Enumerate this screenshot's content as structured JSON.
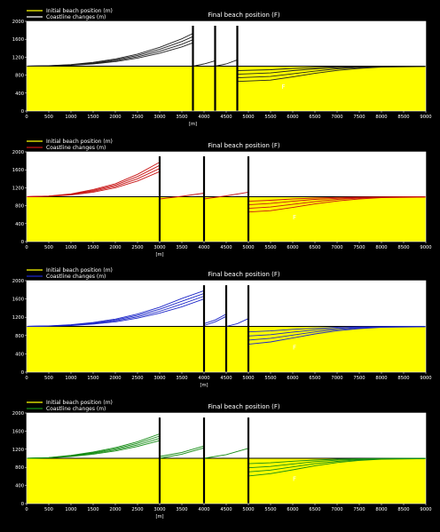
{
  "chart_data": [
    {
      "type": "line",
      "title": "Final beach position (F)",
      "legend": [
        "Initial beach position (m)",
        "Coastline changes (m)"
      ],
      "legend_placement": "top-left",
      "xlabel": "[m]",
      "xlim": [
        0,
        9000
      ],
      "ylim": [
        0,
        2000
      ],
      "xticks": [
        0,
        500,
        1000,
        1500,
        2000,
        2500,
        3000,
        3500,
        4000,
        4500,
        5000,
        5500,
        6000,
        6500,
        7000,
        7500,
        8000,
        8500,
        9000
      ],
      "yticks": [
        0,
        400,
        800,
        1200,
        1600,
        2000
      ],
      "initial_beach_position": 1000,
      "groynes": [
        3750,
        4250,
        4750
      ],
      "series_color": "#202020",
      "f_labels": [
        "F",
        "F",
        "F",
        "F"
      ],
      "series": [
        {
          "x": [
            0,
            500,
            1000,
            1500,
            2000,
            2500,
            3000,
            3500,
            3750
          ],
          "y": [
            1000,
            1005,
            1020,
            1050,
            1100,
            1180,
            1290,
            1430,
            1520
          ]
        },
        {
          "x": [
            0,
            500,
            1000,
            1500,
            2000,
            2500,
            3000,
            3500,
            3750
          ],
          "y": [
            1000,
            1006,
            1025,
            1060,
            1120,
            1210,
            1330,
            1490,
            1590
          ]
        },
        {
          "x": [
            0,
            500,
            1000,
            1500,
            2000,
            2500,
            3000,
            3500,
            3750
          ],
          "y": [
            1000,
            1008,
            1030,
            1072,
            1140,
            1240,
            1375,
            1550,
            1660
          ]
        },
        {
          "x": [
            0,
            500,
            1000,
            1500,
            2000,
            2500,
            3000,
            3500,
            3750
          ],
          "y": [
            1000,
            1010,
            1036,
            1085,
            1160,
            1270,
            1420,
            1610,
            1730
          ]
        },
        {
          "x": [
            3750,
            4000,
            4250
          ],
          "y": [
            1000,
            1050,
            1120
          ]
        },
        {
          "x": [
            4250,
            4500,
            4750
          ],
          "y": [
            1000,
            1050,
            1140
          ]
        },
        {
          "x": [
            4750,
            5500,
            6000,
            6500,
            7000,
            7500,
            8000,
            9000
          ],
          "y": [
            900,
            920,
            950,
            970,
            985,
            993,
            997,
            1000
          ]
        },
        {
          "x": [
            4750,
            5500,
            6000,
            6500,
            7000,
            7500,
            8000,
            9000
          ],
          "y": [
            820,
            850,
            900,
            940,
            965,
            983,
            993,
            998
          ]
        },
        {
          "x": [
            4750,
            5500,
            6000,
            6500,
            7000,
            7500,
            8000,
            9000
          ],
          "y": [
            740,
            770,
            830,
            890,
            940,
            970,
            988,
            996
          ]
        },
        {
          "x": [
            4750,
            5500,
            6000,
            6500,
            7000,
            7500,
            8000,
            9000
          ],
          "y": [
            660,
            690,
            760,
            840,
            905,
            950,
            978,
            992
          ]
        }
      ]
    },
    {
      "type": "line",
      "title": "Final beach position (F)",
      "legend": [
        "Initial beach position (m)",
        "Coastline changes (m)"
      ],
      "legend_placement": "top-left",
      "xlabel": "[m]",
      "xlim": [
        0,
        9000
      ],
      "ylim": [
        0,
        2000
      ],
      "xticks": [
        0,
        500,
        1000,
        1500,
        2000,
        2500,
        3000,
        3500,
        4000,
        4500,
        5000,
        5500,
        6000,
        6500,
        7000,
        7500,
        8000,
        8500,
        9000
      ],
      "yticks": [
        0,
        400,
        800,
        1200,
        1600,
        2000
      ],
      "initial_beach_position": 1000,
      "groynes": [
        3000,
        4000,
        5000
      ],
      "series_color": "#c81414",
      "f_labels": [
        "F",
        "F"
      ],
      "series": [
        {
          "x": [
            0,
            500,
            1000,
            1500,
            2000,
            2500,
            3000
          ],
          "y": [
            1000,
            1010,
            1040,
            1100,
            1200,
            1350,
            1560
          ]
        },
        {
          "x": [
            0,
            500,
            1000,
            1500,
            2000,
            2500,
            3000
          ],
          "y": [
            1000,
            1012,
            1048,
            1120,
            1230,
            1400,
            1630
          ]
        },
        {
          "x": [
            0,
            500,
            1000,
            1500,
            2000,
            2500,
            3000
          ],
          "y": [
            1000,
            1014,
            1056,
            1140,
            1260,
            1450,
            1700
          ]
        },
        {
          "x": [
            0,
            500,
            1000,
            1500,
            2000,
            2500,
            3000
          ],
          "y": [
            1000,
            1016,
            1064,
            1160,
            1290,
            1500,
            1770
          ]
        },
        {
          "x": [
            3000,
            3500,
            4000
          ],
          "y": [
            950,
            1010,
            1080
          ]
        },
        {
          "x": [
            4000,
            4500,
            5000
          ],
          "y": [
            950,
            1020,
            1100
          ]
        },
        {
          "x": [
            5000,
            5500,
            6000,
            6500,
            7000,
            7500,
            8000,
            9000
          ],
          "y": [
            900,
            920,
            950,
            970,
            985,
            993,
            997,
            1000
          ]
        },
        {
          "x": [
            5000,
            5500,
            6000,
            6500,
            7000,
            7500,
            8000,
            9000
          ],
          "y": [
            820,
            850,
            900,
            940,
            965,
            983,
            993,
            998
          ]
        },
        {
          "x": [
            5000,
            5500,
            6000,
            6500,
            7000,
            7500,
            8000,
            9000
          ],
          "y": [
            740,
            770,
            830,
            890,
            940,
            970,
            988,
            996
          ]
        },
        {
          "x": [
            5000,
            5500,
            6000,
            6500,
            7000,
            7500,
            8000,
            9000
          ],
          "y": [
            660,
            690,
            760,
            840,
            905,
            950,
            978,
            992
          ]
        }
      ]
    },
    {
      "type": "line",
      "title": "Final beach position (F)",
      "legend": [
        "Initial beach position (m)",
        "Coastline changes (m)"
      ],
      "legend_placement": "top-left",
      "xlabel": "[m]",
      "xlim": [
        0,
        9000
      ],
      "ylim": [
        0,
        2000
      ],
      "xticks": [
        0,
        500,
        1000,
        1500,
        2000,
        2500,
        3000,
        3500,
        4000,
        4500,
        5000,
        5500,
        6000,
        6500,
        7000,
        7500,
        8000,
        8500,
        9000
      ],
      "yticks": [
        0,
        400,
        800,
        1200,
        1600,
        2000
      ],
      "initial_beach_position": 1000,
      "groynes": [
        4000,
        4500,
        5000
      ],
      "series_color": "#1e28c8",
      "f_labels": [
        "F",
        "F"
      ],
      "series": [
        {
          "x": [
            0,
            500,
            1000,
            1500,
            2000,
            2500,
            3000,
            3500,
            4000
          ],
          "y": [
            1000,
            1005,
            1020,
            1050,
            1100,
            1180,
            1290,
            1430,
            1600
          ]
        },
        {
          "x": [
            0,
            500,
            1000,
            1500,
            2000,
            2500,
            3000,
            3500,
            4000
          ],
          "y": [
            1000,
            1006,
            1025,
            1060,
            1120,
            1210,
            1330,
            1490,
            1660
          ]
        },
        {
          "x": [
            0,
            500,
            1000,
            1500,
            2000,
            2500,
            3000,
            3500,
            4000
          ],
          "y": [
            1000,
            1008,
            1030,
            1072,
            1140,
            1240,
            1375,
            1550,
            1720
          ]
        },
        {
          "x": [
            0,
            500,
            1000,
            1500,
            2000,
            2500,
            3000,
            3500,
            4000
          ],
          "y": [
            1000,
            1010,
            1036,
            1085,
            1160,
            1270,
            1420,
            1610,
            1780
          ]
        },
        {
          "x": [
            4000,
            4250,
            4500
          ],
          "y": [
            1020,
            1100,
            1220
          ]
        },
        {
          "x": [
            4000,
            4250,
            4500
          ],
          "y": [
            1060,
            1140,
            1270
          ]
        },
        {
          "x": [
            4500,
            4750,
            5000
          ],
          "y": [
            1000,
            1060,
            1170
          ]
        },
        {
          "x": [
            5000,
            5500,
            6000,
            6500,
            7000,
            7500,
            8000,
            9000
          ],
          "y": [
            880,
            900,
            935,
            960,
            980,
            990,
            996,
            1000
          ]
        },
        {
          "x": [
            5000,
            5500,
            6000,
            6500,
            7000,
            7500,
            8000,
            9000
          ],
          "y": [
            790,
            820,
            875,
            925,
            958,
            980,
            992,
            998
          ]
        },
        {
          "x": [
            5000,
            5500,
            6000,
            6500,
            7000,
            7500,
            8000,
            9000
          ],
          "y": [
            700,
            740,
            810,
            880,
            932,
            966,
            986,
            995
          ]
        },
        {
          "x": [
            5000,
            5500,
            6000,
            6500,
            7000,
            7500,
            8000,
            9000
          ],
          "y": [
            610,
            660,
            745,
            835,
            905,
            952,
            980,
            992
          ]
        }
      ]
    },
    {
      "type": "line",
      "title": "Final beach position (F)",
      "legend": [
        "Initial beach position (m)",
        "Coastline changes (m)"
      ],
      "legend_placement": "top-left",
      "xlabel": "[m]",
      "xlim": [
        0,
        9000
      ],
      "ylim": [
        0,
        2000
      ],
      "xticks": [
        0,
        500,
        1000,
        1500,
        2000,
        2500,
        3000,
        3500,
        4000,
        4500,
        5000,
        5500,
        6000,
        6500,
        7000,
        7500,
        8000,
        8500,
        9000
      ],
      "yticks": [
        0,
        400,
        800,
        1200,
        1600,
        2000
      ],
      "initial_beach_position": 1000,
      "groynes": [
        3000,
        4000,
        5000
      ],
      "series_color": "#148c14",
      "f_labels": [
        "F",
        "F",
        "F",
        "F"
      ],
      "series": [
        {
          "x": [
            0,
            500,
            1000,
            1500,
            2000,
            2500,
            3000
          ],
          "y": [
            1000,
            1010,
            1040,
            1090,
            1160,
            1260,
            1390
          ]
        },
        {
          "x": [
            0,
            500,
            1000,
            1500,
            2000,
            2500,
            3000
          ],
          "y": [
            1000,
            1012,
            1048,
            1106,
            1185,
            1295,
            1440
          ]
        },
        {
          "x": [
            0,
            500,
            1000,
            1500,
            2000,
            2500,
            3000
          ],
          "y": [
            1000,
            1014,
            1056,
            1122,
            1210,
            1330,
            1490
          ]
        },
        {
          "x": [
            0,
            500,
            1000,
            1500,
            2000,
            2500,
            3000
          ],
          "y": [
            1000,
            1016,
            1064,
            1138,
            1235,
            1365,
            1540
          ]
        },
        {
          "x": [
            3000,
            3500,
            4000
          ],
          "y": [
            1000,
            1090,
            1230
          ]
        },
        {
          "x": [
            3000,
            3500,
            4000
          ],
          "y": [
            1040,
            1130,
            1270
          ]
        },
        {
          "x": [
            4000,
            4500,
            5000
          ],
          "y": [
            1000,
            1080,
            1220
          ]
        },
        {
          "x": [
            5000,
            5500,
            6000,
            6500,
            7000,
            7500,
            8000,
            9000
          ],
          "y": [
            880,
            900,
            935,
            960,
            980,
            990,
            996,
            1000
          ]
        },
        {
          "x": [
            5000,
            5500,
            6000,
            6500,
            7000,
            7500,
            8000,
            9000
          ],
          "y": [
            790,
            820,
            875,
            925,
            958,
            980,
            992,
            998
          ]
        },
        {
          "x": [
            5000,
            5500,
            6000,
            6500,
            7000,
            7500,
            8000,
            9000
          ],
          "y": [
            700,
            740,
            810,
            880,
            932,
            966,
            986,
            995
          ]
        },
        {
          "x": [
            5000,
            5500,
            6000,
            6500,
            7000,
            7500,
            8000,
            9000
          ],
          "y": [
            610,
            660,
            745,
            835,
            905,
            952,
            980,
            992
          ]
        }
      ]
    }
  ]
}
